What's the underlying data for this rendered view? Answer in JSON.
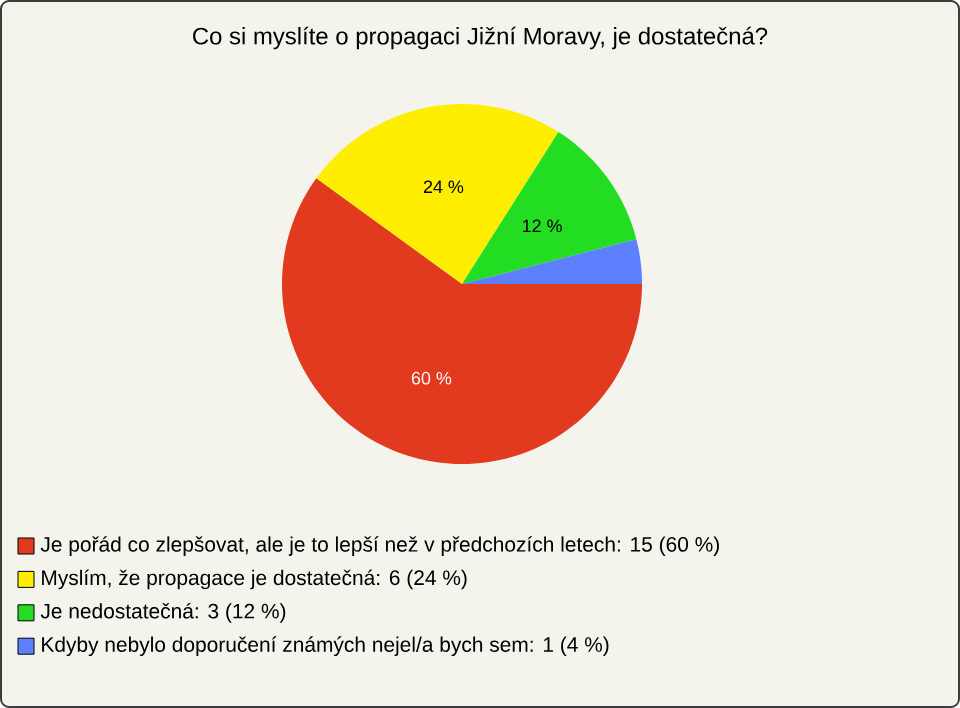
{
  "chart_data": {
    "type": "pie",
    "title": "Co si myslíte o propagaci Jižní Moravy, je dostatečná?",
    "categories": [
      "Je pořád co zlepšovat, ale je to lepší než v předchozích letech: 15 (60 %)",
      "Myslím, že propagace je dostatečná: 6 (24 %)",
      "Je nedostatečná: 3 (12 %)",
      "Kdyby nebylo doporučení známých nejel/a bych sem: 1 (4 %)"
    ],
    "values": [
      60,
      24,
      12,
      4
    ],
    "colors": [
      "#e23a1e",
      "#ffee00",
      "#22dd22",
      "#5c80ff"
    ],
    "value_labels": [
      "60 %",
      "24 %",
      "12 %",
      null
    ],
    "legend": "bottom"
  }
}
